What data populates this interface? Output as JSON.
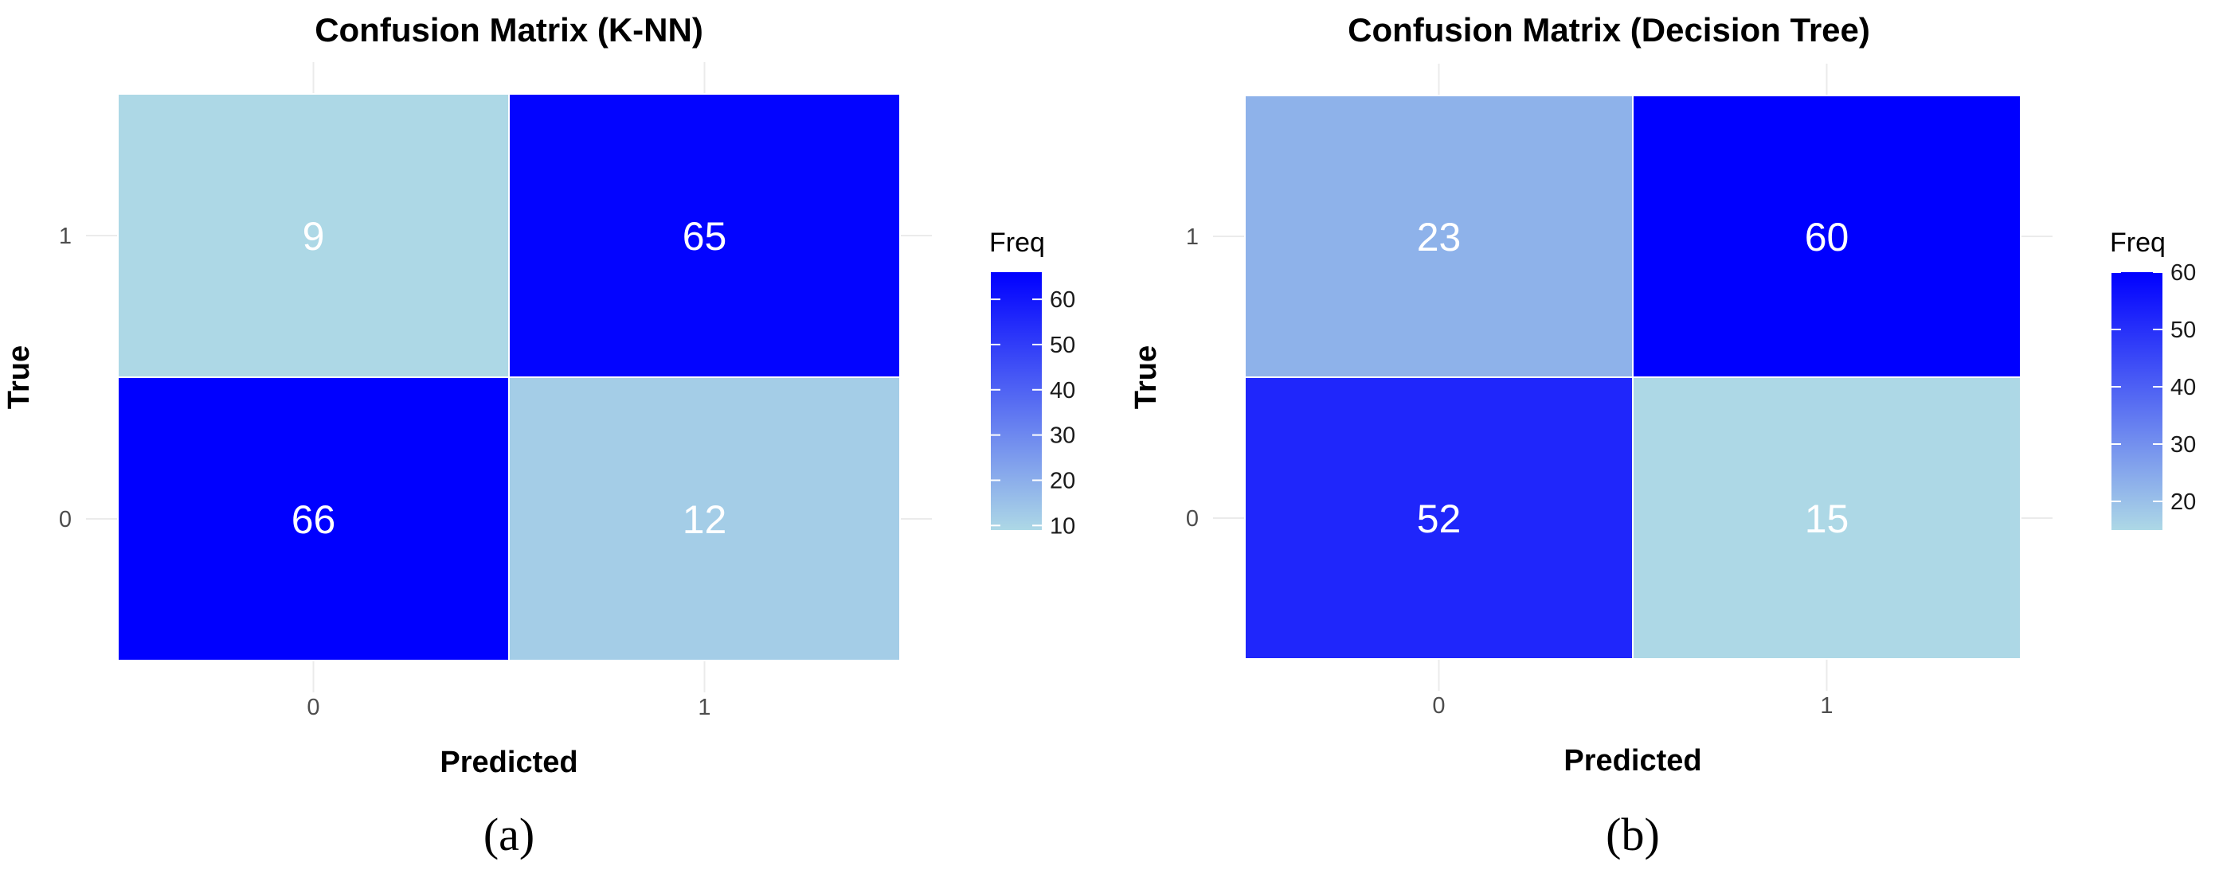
{
  "chart_data": [
    {
      "type": "heatmap",
      "panel_label": "(a)",
      "title": "Confusion Matrix (K-NN)",
      "xlabel": "Predicted",
      "ylabel": "True",
      "x_categories": [
        "0",
        "1"
      ],
      "y_categories": [
        "0",
        "1"
      ],
      "cells": [
        {
          "predicted": "0",
          "true": "1",
          "value": 9
        },
        {
          "predicted": "1",
          "true": "1",
          "value": 65
        },
        {
          "predicted": "0",
          "true": "0",
          "value": 66
        },
        {
          "predicted": "1",
          "true": "0",
          "value": 12
        }
      ],
      "legend": {
        "title": "Freq",
        "ticks": [
          10,
          20,
          30,
          40,
          50,
          60
        ],
        "min": 9,
        "max": 66,
        "low_color": "#add8e6",
        "high_color": "#0000ff"
      },
      "grid": true
    },
    {
      "type": "heatmap",
      "panel_label": "(b)",
      "title": "Confusion Matrix (Decision Tree)",
      "xlabel": "Predicted",
      "ylabel": "True",
      "x_categories": [
        "0",
        "1"
      ],
      "y_categories": [
        "0",
        "1"
      ],
      "cells": [
        {
          "predicted": "0",
          "true": "1",
          "value": 23
        },
        {
          "predicted": "1",
          "true": "1",
          "value": 60
        },
        {
          "predicted": "0",
          "true": "0",
          "value": 52
        },
        {
          "predicted": "1",
          "true": "0",
          "value": 15
        }
      ],
      "legend": {
        "title": "Freq",
        "ticks": [
          20,
          30,
          40,
          50,
          60
        ],
        "min": 15,
        "max": 60,
        "low_color": "#add8e6",
        "high_color": "#0000ff"
      },
      "grid": true
    }
  ]
}
